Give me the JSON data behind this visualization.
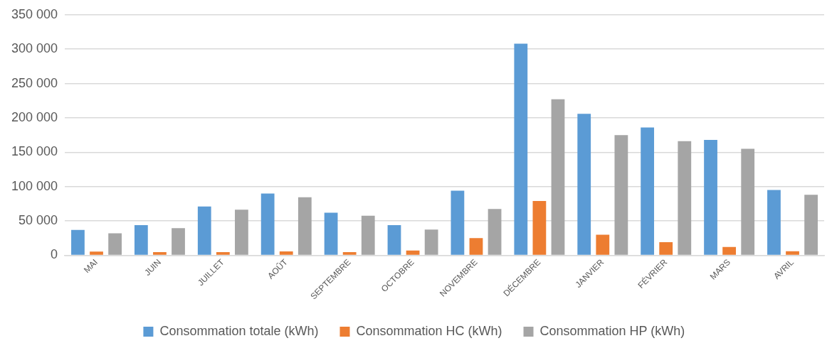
{
  "chart_data": {
    "type": "bar",
    "categories": [
      "MAI",
      "JUIN",
      "JUILLET",
      "AOÛT",
      "SEPTEMBRE",
      "OCTOBRE",
      "NOVEMBRE",
      "DÉCEMBRE",
      "JANVIER",
      "FÉVRIER",
      "MARS",
      "AVRIL"
    ],
    "series": [
      {
        "name": "Consommation totale (kWh)",
        "color": "#5b9bd5",
        "values": [
          37000,
          44000,
          71000,
          90000,
          62000,
          44000,
          94000,
          308000,
          206000,
          186000,
          168000,
          95000
        ]
      },
      {
        "name": "Consommation HC (kWh)",
        "color": "#ed7d31",
        "values": [
          5500,
          4700,
          4700,
          5600,
          4700,
          7000,
          25000,
          79000,
          30000,
          19000,
          12000,
          6000
        ]
      },
      {
        "name": "Consommation HP (kWh)",
        "color": "#a5a5a5",
        "values": [
          32000,
          39500,
          66500,
          84500,
          57500,
          37500,
          67500,
          227000,
          175000,
          166000,
          155000,
          88000
        ]
      }
    ],
    "ylim": [
      0,
      350000
    ],
    "yticks": [
      {
        "value": 0,
        "label": "0"
      },
      {
        "value": 50000,
        "label": "50 000"
      },
      {
        "value": 100000,
        "label": "100 000"
      },
      {
        "value": 150000,
        "label": "150 000"
      },
      {
        "value": 200000,
        "label": "200 000"
      },
      {
        "value": 250000,
        "label": "250 000"
      },
      {
        "value": 300000,
        "label": "300 000"
      },
      {
        "value": 350000,
        "label": "350 000"
      }
    ],
    "grid": "y",
    "legend": "bottom"
  }
}
